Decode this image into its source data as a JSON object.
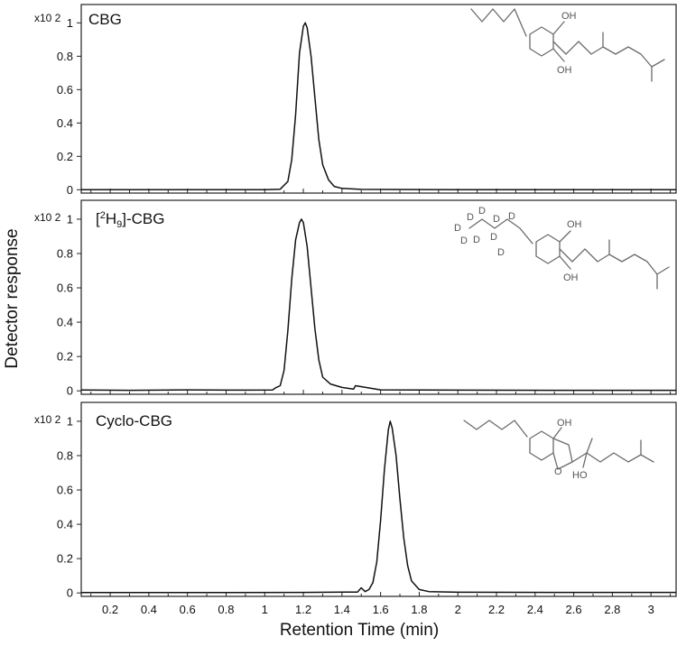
{
  "chart_data": {
    "type": "line",
    "xlabel": "Retention Time (min)",
    "ylabel": "Detector response",
    "xlim": [
      0.05,
      3.13
    ],
    "x_ticks": [
      0.2,
      0.4,
      0.6,
      0.8,
      1,
      1.2,
      1.4,
      1.6,
      1.8,
      2,
      2.2,
      2.4,
      2.6,
      2.8,
      3
    ],
    "x_tick_labels": [
      "0.2",
      "0.4",
      "0.6",
      "0.8",
      "1",
      "1.2",
      "1.4",
      "1.6",
      "1.8",
      "2",
      "2.2",
      "2.4",
      "2.6",
      "2.8",
      "3"
    ],
    "panels": [
      {
        "title": "CBG",
        "scale_label": "x10 2",
        "ylim": [
          -0.02,
          1.11
        ],
        "y_ticks": [
          "0",
          "0.2",
          "0.4",
          "0.6",
          "0.8",
          "1"
        ],
        "structure": {
          "oh_labels": [
            "OH",
            "OH"
          ]
        },
        "x": [
          0.05,
          0.5,
          1.0,
          1.08,
          1.12,
          1.14,
          1.16,
          1.18,
          1.2,
          1.21,
          1.22,
          1.24,
          1.26,
          1.28,
          1.3,
          1.33,
          1.36,
          1.4,
          1.5,
          2.0,
          2.5,
          3.13
        ],
        "y": [
          0.0,
          0.0,
          0.0,
          0.003,
          0.05,
          0.18,
          0.45,
          0.82,
          0.98,
          1.0,
          0.97,
          0.8,
          0.55,
          0.3,
          0.15,
          0.06,
          0.02,
          0.008,
          0.002,
          0.0,
          0.0,
          0.0
        ]
      },
      {
        "title": "[2H9]-CBG",
        "scale_label": "x10 2",
        "ylim": [
          -0.02,
          1.11
        ],
        "y_ticks": [
          "0",
          "0.2",
          "0.4",
          "0.6",
          "0.8",
          "1"
        ],
        "structure": {
          "oh_labels": [
            "OH",
            "OH"
          ],
          "d_labels": [
            "D",
            "D",
            "D",
            "D",
            "D",
            "D",
            "D",
            "D",
            "D"
          ]
        },
        "x": [
          0.05,
          0.3,
          0.6,
          0.9,
          1.04,
          1.06,
          1.08,
          1.1,
          1.12,
          1.14,
          1.16,
          1.18,
          1.19,
          1.2,
          1.22,
          1.24,
          1.26,
          1.28,
          1.3,
          1.34,
          1.4,
          1.46,
          1.47,
          1.6,
          2.0,
          2.5,
          3.13
        ],
        "y": [
          0.005,
          0.003,
          0.006,
          0.004,
          0.005,
          0.02,
          0.03,
          0.12,
          0.35,
          0.65,
          0.88,
          0.98,
          1.0,
          0.98,
          0.84,
          0.6,
          0.36,
          0.18,
          0.08,
          0.04,
          0.02,
          0.01,
          0.03,
          0.006,
          0.004,
          0.003,
          0.003
        ]
      },
      {
        "title": "Cyclo-CBG",
        "scale_label": "x10 2",
        "ylim": [
          -0.02,
          1.11
        ],
        "y_ticks": [
          "0",
          "0.2",
          "0.4",
          "0.6",
          "0.8",
          "1"
        ],
        "structure": {
          "oh_labels": [
            "OH",
            "HO"
          ],
          "o_label": "O"
        },
        "x": [
          0.05,
          0.6,
          1.2,
          1.48,
          1.5,
          1.52,
          1.54,
          1.56,
          1.58,
          1.6,
          1.62,
          1.64,
          1.65,
          1.66,
          1.68,
          1.7,
          1.72,
          1.74,
          1.76,
          1.8,
          1.85,
          2.0,
          2.5,
          3.13
        ],
        "y": [
          0.002,
          0.002,
          0.003,
          0.005,
          0.03,
          0.008,
          0.02,
          0.06,
          0.18,
          0.42,
          0.72,
          0.95,
          1.0,
          0.96,
          0.8,
          0.55,
          0.32,
          0.16,
          0.07,
          0.02,
          0.008,
          0.004,
          0.003,
          0.003
        ]
      }
    ]
  }
}
